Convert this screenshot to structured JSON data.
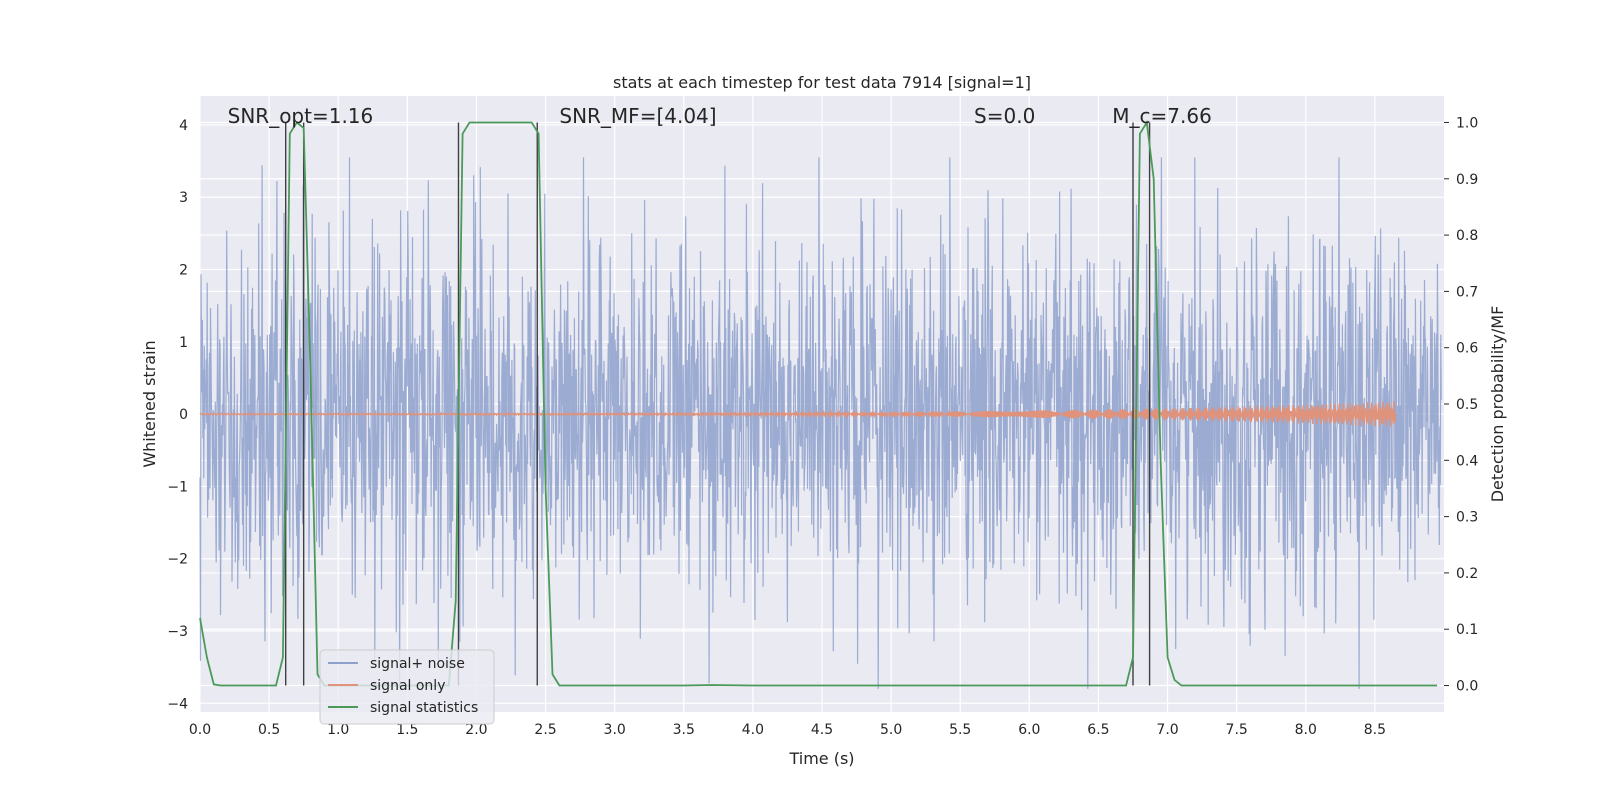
{
  "chart_data": {
    "type": "line",
    "title": "stats at each timestep for test data 7914 [signal=1]",
    "xlabel": "Time (s)",
    "ylabel": "Whitened strain",
    "y2label": "Detection probability/MF",
    "xlim": [
      0.0,
      9.0
    ],
    "ylim": [
      -4.12,
      4.4
    ],
    "y2lim": [
      -0.047,
      1.047
    ],
    "xticks": [
      "0.0",
      "0.5",
      "1.0",
      "1.5",
      "2.0",
      "2.5",
      "3.0",
      "3.5",
      "4.0",
      "4.5",
      "5.0",
      "5.5",
      "6.0",
      "6.5",
      "7.0",
      "7.5",
      "8.0",
      "8.5"
    ],
    "yticks": [
      "−4",
      "−3",
      "−2",
      "−1",
      "0",
      "1",
      "2",
      "3",
      "4"
    ],
    "y2ticks": [
      "0.0",
      "0.1",
      "0.2",
      "0.3",
      "0.4",
      "0.5",
      "0.6",
      "0.7",
      "0.8",
      "0.9",
      "1.0"
    ],
    "grid": true,
    "legend_position": "lower-left",
    "annotations": [
      {
        "text": "SNR_opt=1.16",
        "x": 0.2
      },
      {
        "text": "SNR_MF=[4.04]",
        "x": 2.6
      },
      {
        "text": "S=0.0",
        "x": 5.6
      },
      {
        "text": "M_c=7.66",
        "x": 6.6
      }
    ],
    "vertical_lines_x": [
      0.62,
      0.75,
      1.87,
      2.44,
      6.75,
      6.87
    ],
    "series": [
      {
        "name": "signal+ noise",
        "color": "#8da0cb",
        "axis": "left",
        "description_values": "dense whitened noise, roughly within [-3.8, 3.5]",
        "sample_count": 2600,
        "amplitude_std": 1.0
      },
      {
        "name": "signal only",
        "color": "#e0927a",
        "axis": "left",
        "chirp": {
          "start": 0.0,
          "end": 8.65,
          "peak_amplitude": 0.17
        }
      },
      {
        "name": "signal statistics",
        "color": "#4c9a5a",
        "axis": "right",
        "x": [
          0.0,
          0.05,
          0.1,
          0.15,
          0.5,
          0.55,
          0.6,
          0.65,
          0.7,
          0.75,
          0.8,
          0.85,
          0.9,
          1.0,
          1.8,
          1.85,
          1.9,
          1.95,
          2.4,
          2.45,
          2.5,
          2.55,
          2.6,
          3.5,
          3.7,
          4.0,
          6.6,
          6.7,
          6.75,
          6.8,
          6.85,
          6.9,
          6.95,
          7.0,
          7.05,
          7.1,
          8.95
        ],
        "y": [
          0.12,
          0.05,
          0.002,
          0.0,
          0.0,
          0.0,
          0.05,
          0.98,
          1.0,
          0.99,
          0.55,
          0.02,
          0.0,
          0.0,
          0.0,
          0.15,
          0.98,
          1.0,
          1.0,
          0.98,
          0.35,
          0.02,
          0.0,
          0.0,
          0.001,
          0.0,
          0.0,
          0.0,
          0.05,
          0.98,
          1.0,
          0.9,
          0.4,
          0.05,
          0.01,
          0.0,
          0.0
        ]
      }
    ]
  }
}
